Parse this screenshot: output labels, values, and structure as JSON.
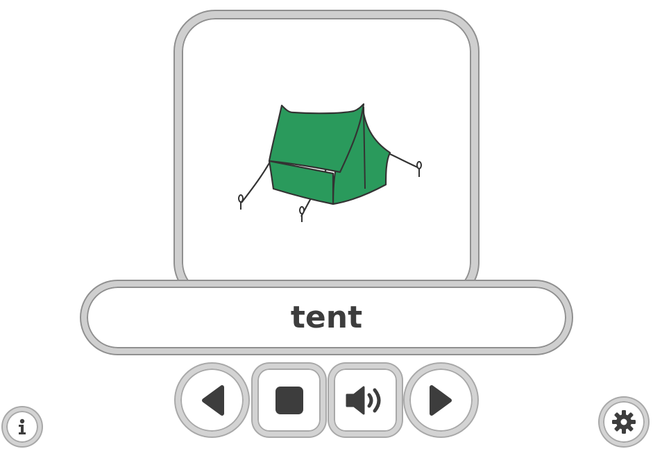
{
  "card": {
    "image": "tent-illustration",
    "image_color": "#2a9a5c"
  },
  "word": {
    "text": "tent"
  },
  "controls": [
    {
      "name": "previous-button",
      "icon": "triangle-left-icon"
    },
    {
      "name": "stop-button",
      "icon": "stop-square-icon"
    },
    {
      "name": "sound-button",
      "icon": "speaker-icon"
    },
    {
      "name": "next-button",
      "icon": "triangle-right-icon"
    }
  ],
  "corner": {
    "info_icon": "info-icon",
    "settings_icon": "gear-icon"
  },
  "colors": {
    "icon": "#3d3d3d",
    "frame": "#cfcfcf",
    "frame_edge": "#8f8f8f"
  }
}
